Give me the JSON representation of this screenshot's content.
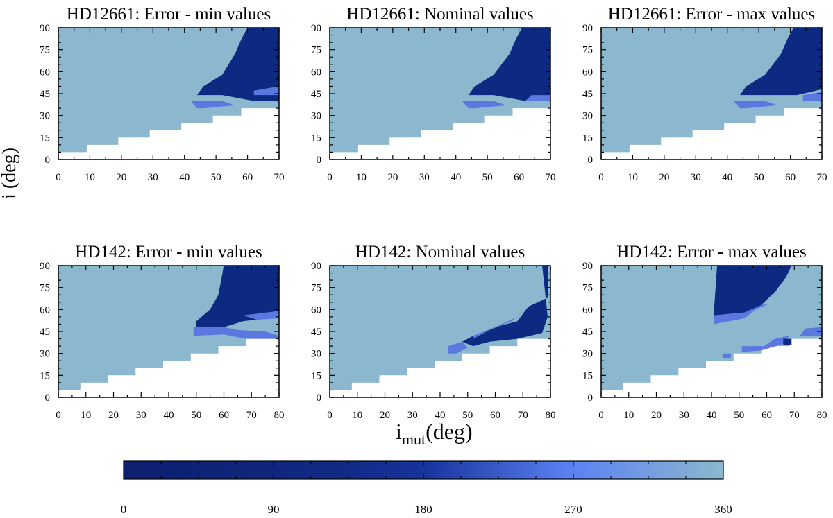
{
  "figure": {
    "ylabel": "i (deg)",
    "xlabel_main": "i",
    "xlabel_sub": "mut",
    "xlabel_unit": "(deg)"
  },
  "colors": {
    "light": "#8bb8cf",
    "mid": "#5a78e0",
    "dark": "#0c2a82",
    "colorbar_stops": [
      "#0e1f6e",
      "#102a84",
      "#15339c",
      "#5a80f2",
      "#8bb8cf"
    ]
  },
  "chart_data": [
    {
      "type": "heatmap",
      "title": "HD12661: Error - min values",
      "xlim": [
        0,
        70
      ],
      "xticks": [
        0,
        10,
        20,
        30,
        40,
        50,
        60,
        70
      ],
      "ylim": [
        0,
        90
      ],
      "yticks": [
        0,
        15,
        30,
        45,
        60,
        75,
        90
      ],
      "boundary": [
        [
          0,
          5
        ],
        [
          9,
          5
        ],
        [
          9,
          10
        ],
        [
          19,
          10
        ],
        [
          19,
          15
        ],
        [
          29,
          15
        ],
        [
          29,
          20
        ],
        [
          39,
          20
        ],
        [
          39,
          25
        ],
        [
          49,
          25
        ],
        [
          49,
          30
        ],
        [
          58,
          30
        ],
        [
          58,
          35
        ],
        [
          70,
          35
        ]
      ],
      "regions": [
        {
          "color": "dark",
          "poly": [
            [
              60,
              90
            ],
            [
              70,
              90
            ],
            [
              70,
              40
            ],
            [
              62,
              40
            ],
            [
              52,
              44
            ],
            [
              44,
              44
            ],
            [
              46,
              50
            ],
            [
              52,
              58
            ],
            [
              56,
              72
            ],
            [
              58,
              82
            ]
          ]
        },
        {
          "color": "mid",
          "poly": [
            [
              42,
              40
            ],
            [
              52,
              40
            ],
            [
              56,
              37
            ],
            [
              46,
              35
            ],
            [
              44,
              35
            ]
          ]
        },
        {
          "color": "mid",
          "poly": [
            [
              62,
              47
            ],
            [
              70,
              50
            ],
            [
              70,
              44
            ],
            [
              62,
              44
            ]
          ]
        }
      ]
    },
    {
      "type": "heatmap",
      "title": "HD12661: Nominal values",
      "xlim": [
        0,
        70
      ],
      "xticks": [
        0,
        10,
        20,
        30,
        40,
        50,
        60,
        70
      ],
      "ylim": [
        0,
        90
      ],
      "yticks": [
        0,
        15,
        30,
        45,
        60,
        75,
        90
      ],
      "boundary": [
        [
          0,
          5
        ],
        [
          9,
          5
        ],
        [
          9,
          10
        ],
        [
          19,
          10
        ],
        [
          19,
          15
        ],
        [
          29,
          15
        ],
        [
          29,
          20
        ],
        [
          39,
          20
        ],
        [
          39,
          25
        ],
        [
          49,
          25
        ],
        [
          49,
          30
        ],
        [
          58,
          30
        ],
        [
          58,
          35
        ],
        [
          70,
          35
        ]
      ],
      "regions": [
        {
          "color": "dark",
          "poly": [
            [
              61,
              90
            ],
            [
              70,
              90
            ],
            [
              70,
              40
            ],
            [
              62,
              40
            ],
            [
              52,
              44
            ],
            [
              44,
              44
            ],
            [
              46,
              50
            ],
            [
              52,
              58
            ],
            [
              57,
              72
            ],
            [
              59,
              82
            ]
          ]
        },
        {
          "color": "mid",
          "poly": [
            [
              42,
              40
            ],
            [
              52,
              40
            ],
            [
              56,
              37
            ],
            [
              46,
              35
            ],
            [
              44,
              35
            ]
          ]
        },
        {
          "color": "mid",
          "poly": [
            [
              62,
              40
            ],
            [
              70,
              40
            ],
            [
              70,
              44
            ],
            [
              64,
              44
            ]
          ]
        }
      ]
    },
    {
      "type": "heatmap",
      "title": "HD12661: Error - max values",
      "xlim": [
        0,
        70
      ],
      "xticks": [
        0,
        10,
        20,
        30,
        40,
        50,
        60,
        70
      ],
      "ylim": [
        0,
        90
      ],
      "yticks": [
        0,
        15,
        30,
        45,
        60,
        75,
        90
      ],
      "boundary": [
        [
          0,
          5
        ],
        [
          9,
          5
        ],
        [
          9,
          10
        ],
        [
          19,
          10
        ],
        [
          19,
          15
        ],
        [
          29,
          15
        ],
        [
          29,
          20
        ],
        [
          39,
          20
        ],
        [
          39,
          25
        ],
        [
          49,
          25
        ],
        [
          49,
          30
        ],
        [
          58,
          30
        ],
        [
          58,
          35
        ],
        [
          70,
          35
        ]
      ],
      "regions": [
        {
          "color": "dark",
          "poly": [
            [
              61,
              90
            ],
            [
              70,
              90
            ],
            [
              70,
              48
            ],
            [
              62,
              44
            ],
            [
              52,
              44
            ],
            [
              44,
              44
            ],
            [
              46,
              50
            ],
            [
              52,
              58
            ],
            [
              57,
              72
            ],
            [
              59,
              82
            ]
          ]
        },
        {
          "color": "mid",
          "poly": [
            [
              42,
              40
            ],
            [
              52,
              40
            ],
            [
              56,
              37
            ],
            [
              46,
              35
            ],
            [
              44,
              35
            ]
          ]
        },
        {
          "color": "mid",
          "poly": [
            [
              64,
              40
            ],
            [
              70,
              40
            ],
            [
              70,
              46
            ],
            [
              64,
              44
            ]
          ]
        }
      ]
    },
    {
      "type": "heatmap",
      "title": "HD142: Error - min values",
      "xlim": [
        0,
        80
      ],
      "xticks": [
        0,
        10,
        20,
        30,
        40,
        50,
        60,
        70,
        80
      ],
      "ylim": [
        0,
        90
      ],
      "yticks": [
        0,
        15,
        30,
        45,
        60,
        75,
        90
      ],
      "boundary": [
        [
          0,
          5
        ],
        [
          8,
          5
        ],
        [
          8,
          10
        ],
        [
          18,
          10
        ],
        [
          18,
          15
        ],
        [
          28,
          15
        ],
        [
          28,
          20
        ],
        [
          38,
          20
        ],
        [
          38,
          25
        ],
        [
          48,
          25
        ],
        [
          48,
          30
        ],
        [
          58,
          30
        ],
        [
          58,
          35
        ],
        [
          68,
          35
        ],
        [
          68,
          40
        ],
        [
          80,
          40
        ]
      ],
      "regions": [
        {
          "color": "dark",
          "poly": [
            [
              60,
              90
            ],
            [
              80,
              90
            ],
            [
              80,
              55
            ],
            [
              67,
              52
            ],
            [
              60,
              48
            ],
            [
              50,
              48
            ],
            [
              50,
              52
            ],
            [
              55,
              60
            ],
            [
              58,
              70
            ],
            [
              59,
              80
            ]
          ]
        },
        {
          "color": "mid",
          "poly": [
            [
              49,
              48
            ],
            [
              60,
              48
            ],
            [
              65,
              46
            ],
            [
              75,
              45
            ],
            [
              80,
              42
            ],
            [
              80,
              40
            ],
            [
              68,
              40
            ],
            [
              60,
              43
            ],
            [
              49,
              42
            ]
          ]
        },
        {
          "color": "mid",
          "poly": [
            [
              67,
              56
            ],
            [
              80,
              59
            ],
            [
              80,
              54
            ],
            [
              72,
              53
            ]
          ]
        }
      ]
    },
    {
      "type": "heatmap",
      "title": "HD142: Nominal values",
      "xlim": [
        0,
        80
      ],
      "xticks": [
        0,
        10,
        20,
        30,
        40,
        50,
        60,
        70,
        80
      ],
      "ylim": [
        0,
        90
      ],
      "yticks": [
        0,
        15,
        30,
        45,
        60,
        75,
        90
      ],
      "boundary": [
        [
          0,
          5
        ],
        [
          8,
          5
        ],
        [
          8,
          10
        ],
        [
          18,
          10
        ],
        [
          18,
          15
        ],
        [
          28,
          15
        ],
        [
          28,
          20
        ],
        [
          38,
          20
        ],
        [
          38,
          25
        ],
        [
          48,
          25
        ],
        [
          48,
          30
        ],
        [
          58,
          30
        ],
        [
          58,
          35
        ],
        [
          68,
          35
        ],
        [
          68,
          40
        ],
        [
          80,
          40
        ]
      ],
      "regions": [
        {
          "color": "dark",
          "poly": [
            [
              77,
              90
            ],
            [
              79,
              90
            ],
            [
              79,
              68
            ],
            [
              72,
              62
            ],
            [
              68,
              52
            ],
            [
              60,
              48
            ],
            [
              52,
              42
            ],
            [
              48,
              38
            ],
            [
              52,
              35
            ],
            [
              58,
              38
            ],
            [
              68,
              40
            ],
            [
              77,
              44
            ],
            [
              79,
              55
            ]
          ]
        },
        {
          "color": "mid",
          "poly": [
            [
              43,
              35
            ],
            [
              48,
              38
            ],
            [
              50,
              34
            ],
            [
              46,
              30
            ],
            [
              43,
              30
            ]
          ]
        },
        {
          "color": "mid",
          "poly": [
            [
              52,
              42
            ],
            [
              60,
              48
            ],
            [
              68,
              55
            ],
            [
              72,
              62
            ],
            [
              66,
              52
            ],
            [
              58,
              46
            ],
            [
              52,
              40
            ]
          ]
        }
      ]
    },
    {
      "type": "heatmap",
      "title": "HD142: Error - max values",
      "xlim": [
        0,
        80
      ],
      "xticks": [
        0,
        10,
        20,
        30,
        40,
        50,
        60,
        70,
        80
      ],
      "ylim": [
        0,
        90
      ],
      "yticks": [
        0,
        15,
        30,
        45,
        60,
        75,
        90
      ],
      "boundary": [
        [
          0,
          5
        ],
        [
          8,
          5
        ],
        [
          8,
          10
        ],
        [
          18,
          10
        ],
        [
          18,
          15
        ],
        [
          28,
          15
        ],
        [
          28,
          20
        ],
        [
          38,
          20
        ],
        [
          38,
          25
        ],
        [
          48,
          25
        ],
        [
          48,
          30
        ],
        [
          58,
          30
        ],
        [
          58,
          35
        ],
        [
          68,
          35
        ],
        [
          68,
          40
        ],
        [
          80,
          40
        ]
      ],
      "regions": [
        {
          "color": "dark",
          "poly": [
            [
              42,
              90
            ],
            [
              69,
              90
            ],
            [
              67,
              82
            ],
            [
              63,
              72
            ],
            [
              58,
              63
            ],
            [
              52,
              58
            ],
            [
              41,
              56
            ],
            [
              41,
              62
            ]
          ]
        },
        {
          "color": "mid",
          "poly": [
            [
              41,
              56
            ],
            [
              52,
              58
            ],
            [
              58,
              63
            ],
            [
              61,
              64
            ],
            [
              56,
              60
            ],
            [
              52,
              54
            ],
            [
              41,
              50
            ]
          ]
        },
        {
          "color": "mid",
          "poly": [
            [
              44,
              30
            ],
            [
              47,
              30
            ],
            [
              47,
              27
            ],
            [
              44,
              27
            ]
          ]
        },
        {
          "color": "mid",
          "poly": [
            [
              51,
              35
            ],
            [
              59,
              35
            ],
            [
              63,
              40
            ],
            [
              68,
              42
            ],
            [
              67,
              37
            ],
            [
              58,
              32
            ],
            [
              51,
              31
            ]
          ]
        },
        {
          "color": "dark",
          "poly": [
            [
              66,
              36
            ],
            [
              69,
              36
            ],
            [
              69,
              40
            ],
            [
              66,
              40
            ]
          ]
        },
        {
          "color": "mid",
          "poly": [
            [
              72,
              42
            ],
            [
              80,
              42
            ],
            [
              80,
              48
            ],
            [
              74,
              47
            ]
          ]
        }
      ]
    }
  ],
  "colorbar": {
    "min": 0,
    "max": 360,
    "ticks": [
      0,
      90,
      180,
      270,
      360
    ]
  }
}
